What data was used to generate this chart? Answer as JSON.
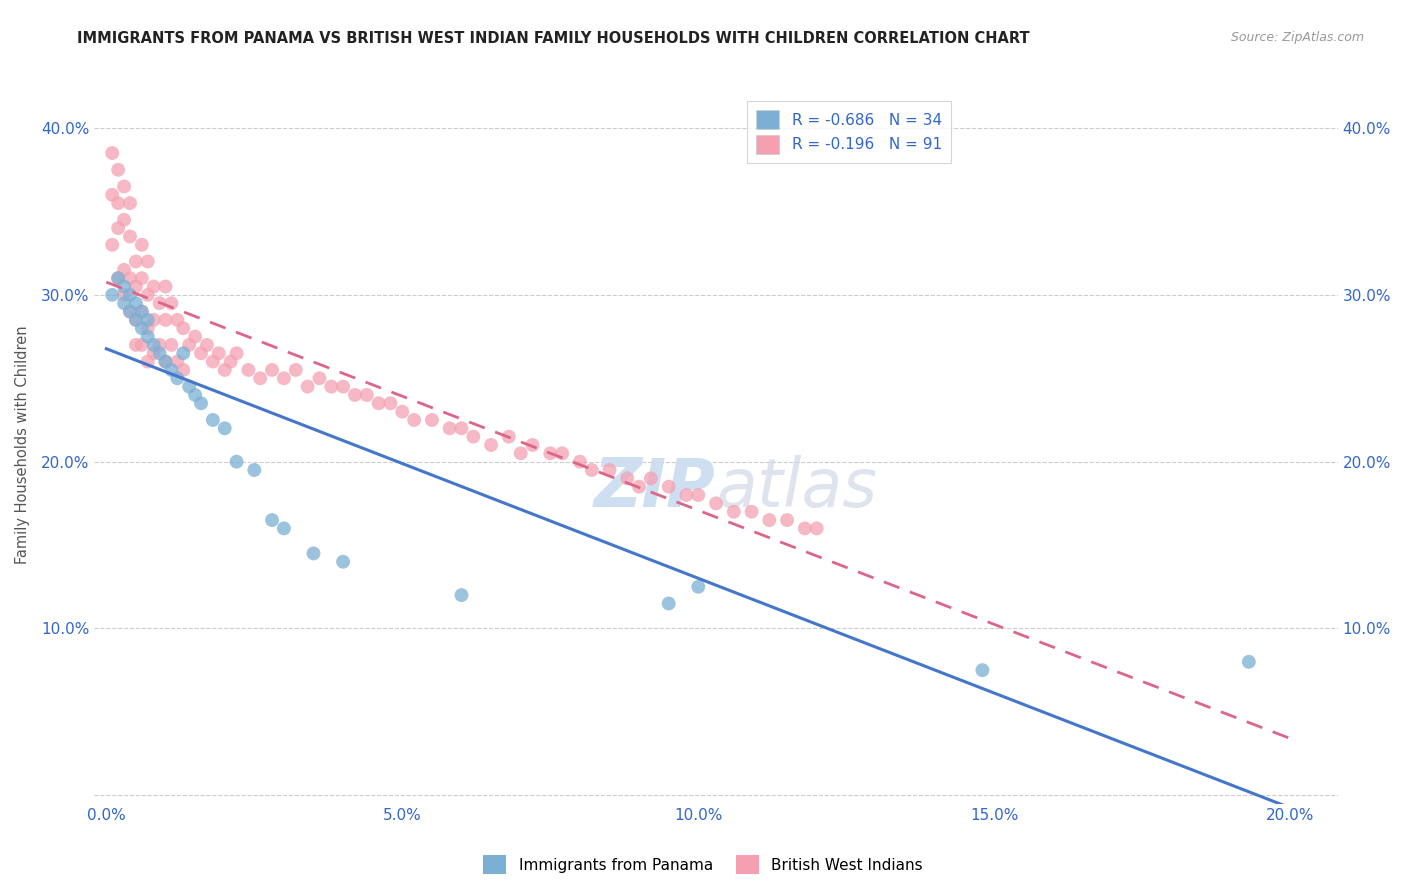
{
  "title": "IMMIGRANTS FROM PANAMA VS BRITISH WEST INDIAN FAMILY HOUSEHOLDS WITH CHILDREN CORRELATION CHART",
  "source": "Source: ZipAtlas.com",
  "ylabel_label": "Family Households with Children",
  "watermark_zip": "ZIP",
  "watermark_atlas": "atlas",
  "blue_R": -0.686,
  "blue_N": 34,
  "pink_R": -0.196,
  "pink_N": 91,
  "blue_color": "#7BAFD4",
  "pink_color": "#F4A0B0",
  "blue_line_color": "#4477CC",
  "pink_line_color": "#DD6688",
  "legend_blue_label": "Immigrants from Panama",
  "legend_pink_label": "British West Indians",
  "blue_x": [
    0.001,
    0.002,
    0.003,
    0.003,
    0.004,
    0.004,
    0.005,
    0.005,
    0.006,
    0.006,
    0.007,
    0.007,
    0.008,
    0.009,
    0.01,
    0.011,
    0.012,
    0.013,
    0.014,
    0.015,
    0.016,
    0.018,
    0.02,
    0.022,
    0.025,
    0.028,
    0.03,
    0.035,
    0.04,
    0.06,
    0.095,
    0.1,
    0.148,
    0.193
  ],
  "blue_y": [
    0.3,
    0.31,
    0.305,
    0.295,
    0.29,
    0.3,
    0.285,
    0.295,
    0.28,
    0.29,
    0.275,
    0.285,
    0.27,
    0.265,
    0.26,
    0.255,
    0.25,
    0.265,
    0.245,
    0.24,
    0.235,
    0.225,
    0.22,
    0.2,
    0.195,
    0.165,
    0.16,
    0.145,
    0.14,
    0.12,
    0.115,
    0.125,
    0.075,
    0.08
  ],
  "pink_x": [
    0.001,
    0.001,
    0.001,
    0.002,
    0.002,
    0.002,
    0.002,
    0.003,
    0.003,
    0.003,
    0.003,
    0.004,
    0.004,
    0.004,
    0.004,
    0.005,
    0.005,
    0.005,
    0.005,
    0.006,
    0.006,
    0.006,
    0.006,
    0.007,
    0.007,
    0.007,
    0.007,
    0.008,
    0.008,
    0.008,
    0.009,
    0.009,
    0.01,
    0.01,
    0.01,
    0.011,
    0.011,
    0.012,
    0.012,
    0.013,
    0.013,
    0.014,
    0.015,
    0.016,
    0.017,
    0.018,
    0.019,
    0.02,
    0.021,
    0.022,
    0.024,
    0.026,
    0.028,
    0.03,
    0.032,
    0.034,
    0.036,
    0.038,
    0.04,
    0.042,
    0.044,
    0.046,
    0.048,
    0.05,
    0.052,
    0.055,
    0.058,
    0.06,
    0.062,
    0.065,
    0.068,
    0.07,
    0.072,
    0.075,
    0.077,
    0.08,
    0.082,
    0.085,
    0.088,
    0.09,
    0.092,
    0.095,
    0.098,
    0.1,
    0.103,
    0.106,
    0.109,
    0.112,
    0.115,
    0.118,
    0.12
  ],
  "pink_y": [
    0.385,
    0.36,
    0.33,
    0.375,
    0.355,
    0.34,
    0.31,
    0.365,
    0.345,
    0.315,
    0.3,
    0.355,
    0.335,
    0.31,
    0.29,
    0.32,
    0.305,
    0.285,
    0.27,
    0.33,
    0.31,
    0.29,
    0.27,
    0.32,
    0.3,
    0.28,
    0.26,
    0.305,
    0.285,
    0.265,
    0.295,
    0.27,
    0.305,
    0.285,
    0.26,
    0.295,
    0.27,
    0.285,
    0.26,
    0.28,
    0.255,
    0.27,
    0.275,
    0.265,
    0.27,
    0.26,
    0.265,
    0.255,
    0.26,
    0.265,
    0.255,
    0.25,
    0.255,
    0.25,
    0.255,
    0.245,
    0.25,
    0.245,
    0.245,
    0.24,
    0.24,
    0.235,
    0.235,
    0.23,
    0.225,
    0.225,
    0.22,
    0.22,
    0.215,
    0.21,
    0.215,
    0.205,
    0.21,
    0.205,
    0.205,
    0.2,
    0.195,
    0.195,
    0.19,
    0.185,
    0.19,
    0.185,
    0.18,
    0.18,
    0.175,
    0.17,
    0.17,
    0.165,
    0.165,
    0.16,
    0.16
  ]
}
